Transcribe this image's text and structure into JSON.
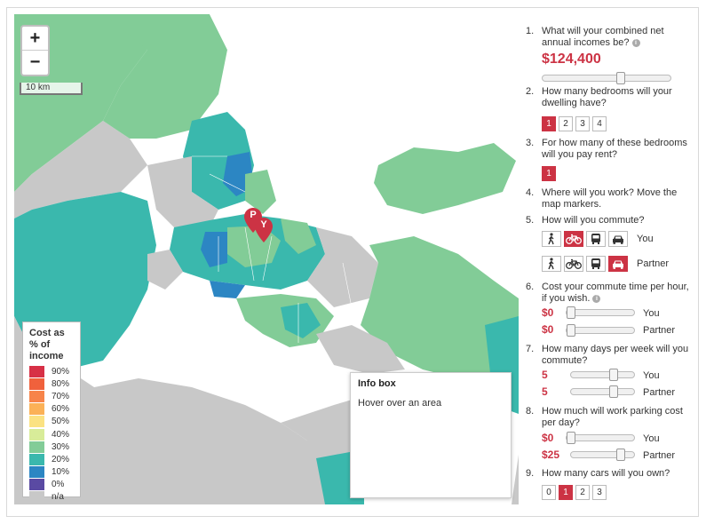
{
  "map": {
    "zoom_in_label": "+",
    "zoom_out_label": "−",
    "scale_label": "10 km",
    "markers": [
      {
        "label": "P"
      },
      {
        "label": "Y"
      }
    ]
  },
  "legend": {
    "title": "Cost as % of income",
    "items": [
      {
        "label": "90%",
        "color": "#d73046"
      },
      {
        "label": "80%",
        "color": "#f0613c"
      },
      {
        "label": "70%",
        "color": "#f7844a"
      },
      {
        "label": "60%",
        "color": "#fbb157"
      },
      {
        "label": "50%",
        "color": "#fbe282"
      },
      {
        "label": "40%",
        "color": "#d8ec99"
      },
      {
        "label": "30%",
        "color": "#82cc97"
      },
      {
        "label": "20%",
        "color": "#3ab8ad"
      },
      {
        "label": "10%",
        "color": "#2c86c3"
      },
      {
        "label": "0%",
        "color": "#5a4aa3"
      },
      {
        "label": "n/a",
        "color": "#c8c8c8"
      }
    ]
  },
  "infobox": {
    "title": "Info box",
    "text": "Hover over an area"
  },
  "questions": {
    "q1": {
      "num": "1.",
      "text": "What will your combined net annual incomes be?",
      "value": "$124,400",
      "slider_fraction": 0.62
    },
    "q2": {
      "num": "2.",
      "text": "How many bedrooms will your dwelling have?",
      "options": [
        "1",
        "2",
        "3",
        "4"
      ],
      "selected": "1"
    },
    "q3": {
      "num": "3.",
      "text": "For how many of these bedrooms will you pay rent?",
      "options": [
        "1"
      ],
      "selected": "1"
    },
    "q4": {
      "num": "4.",
      "text": "Where will you work? Move the map markers."
    },
    "q5": {
      "num": "5.",
      "text": "How will you commute?",
      "you_label": "You",
      "partner_label": "Partner",
      "modes": [
        "walk-icon",
        "bike-icon",
        "bus-icon",
        "car-icon"
      ],
      "you_selected": "bike-icon",
      "partner_selected": "car-icon"
    },
    "q6": {
      "num": "6.",
      "text": "Cost your commute time per hour, if you wish.",
      "you_value": "$0",
      "partner_value": "$0",
      "you_label": "You",
      "partner_label": "Partner",
      "you_fraction": 0.0,
      "partner_fraction": 0.0
    },
    "q7": {
      "num": "7.",
      "text": "How many days per week will you commute?",
      "you_value": "5",
      "partner_value": "5",
      "you_label": "You",
      "partner_label": "Partner",
      "you_fraction": 0.71,
      "partner_fraction": 0.71
    },
    "q8": {
      "num": "8.",
      "text": "How much will work parking cost per day?",
      "you_value": "$0",
      "partner_value": "$25",
      "you_label": "You",
      "partner_label": "Partner",
      "you_fraction": 0.0,
      "partner_fraction": 0.83
    },
    "q9": {
      "num": "9.",
      "text": "How many cars will you own?",
      "options": [
        "0",
        "1",
        "2",
        "3"
      ],
      "selected": "1"
    }
  },
  "colors": {
    "accent": "#cc3344",
    "water": "#ffffff",
    "land_na": "#c8c8c8"
  }
}
